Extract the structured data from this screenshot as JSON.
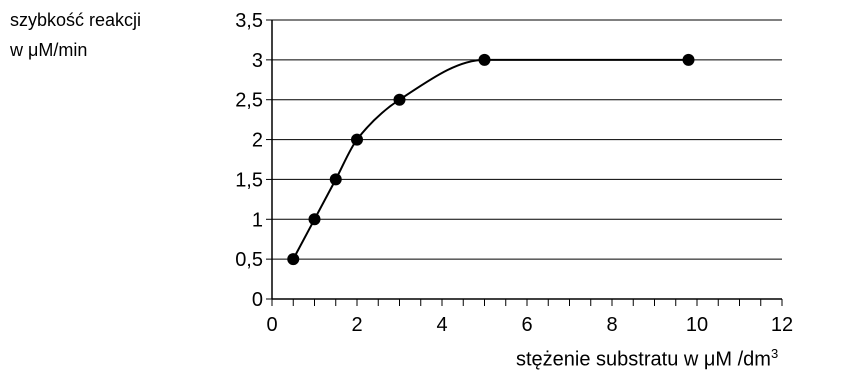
{
  "chart_data": {
    "type": "line",
    "ylabel_line1": "szybkość reakcji",
    "ylabel_line2": "w μM/min",
    "xlabel_main": "stężenie substratu w μM /dm",
    "xlabel_sup": "3",
    "xlim": [
      0,
      12
    ],
    "ylim": [
      0,
      3.5
    ],
    "x_ticks": [
      0,
      2,
      4,
      6,
      8,
      10,
      12
    ],
    "x_minor_step": 0.5,
    "y_ticks": [
      0,
      0.5,
      1,
      1.5,
      2,
      2.5,
      3,
      3.5
    ],
    "y_tick_labels": [
      "0",
      "0,5",
      "1",
      "1,5",
      "2",
      "2,5",
      "3",
      "3,5"
    ],
    "grid": "horizontal",
    "series": [
      {
        "points": [
          {
            "x": 0.5,
            "y": 0.5
          },
          {
            "x": 1,
            "y": 1
          },
          {
            "x": 1.5,
            "y": 1.5
          },
          {
            "x": 2,
            "y": 2
          },
          {
            "x": 3,
            "y": 2.5
          },
          {
            "x": 5,
            "y": 3
          },
          {
            "x": 9.8,
            "y": 3
          }
        ]
      }
    ],
    "colors": {
      "line": "#000000",
      "marker": "#000000",
      "grid": "#000000"
    }
  }
}
